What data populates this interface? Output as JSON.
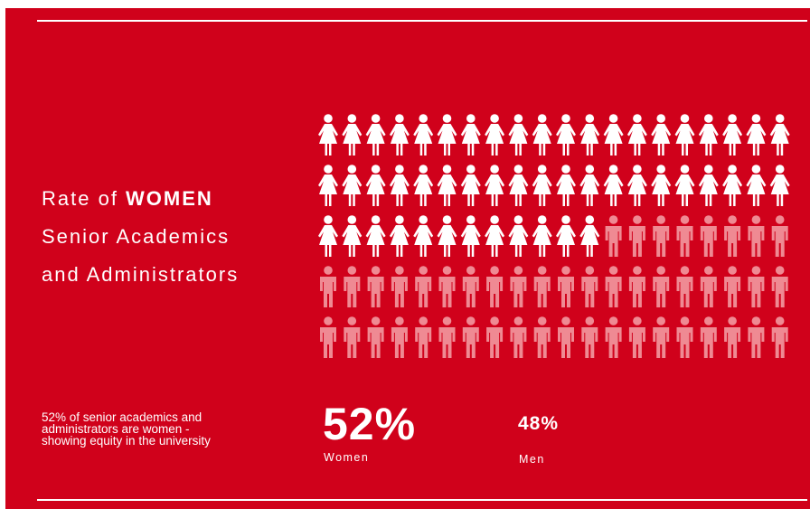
{
  "title": {
    "line1_prefix": "Rate of ",
    "line1_emphasis": "WOMEN",
    "line2": "Senior Academics",
    "line3": "and Administrators"
  },
  "description": {
    "line1": "52% of senior academics and",
    "line2": "administrators are women  -",
    "line3": "showing equity in the university"
  },
  "stats": {
    "women_percent": "52%",
    "women_label": "Women",
    "men_percent": "48%",
    "men_label": "Men"
  },
  "pictogram": {
    "columns": 20,
    "rows": 5,
    "women_count": 52,
    "men_count": 48,
    "women_icon": "female-person-icon",
    "men_icon": "male-person-icon"
  },
  "colors": {
    "background": "#d0011b",
    "women": "#ffffff",
    "men": "#ef8a93"
  }
}
